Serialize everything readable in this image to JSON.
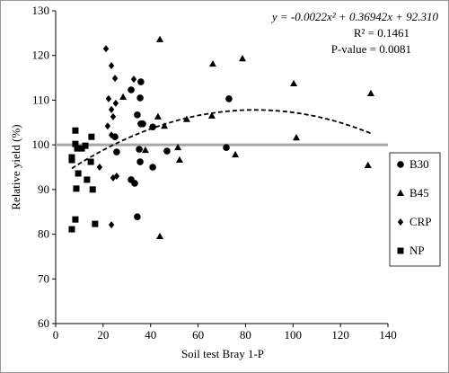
{
  "chart_data": {
    "type": "scatter",
    "xlabel": "Soil test Bray 1-P",
    "ylabel": "Relative yield (%)",
    "xlim": [
      0,
      140
    ],
    "xticks": [
      0,
      20,
      40,
      60,
      80,
      100,
      120,
      140
    ],
    "ylim": [
      60,
      130
    ],
    "yticks": [
      60,
      70,
      80,
      90,
      100,
      110,
      120,
      130
    ],
    "reference_line": {
      "y": 100,
      "color": "#a6a6a6"
    },
    "fit": {
      "a": -0.0022,
      "b": 0.36942,
      "c": 92.31,
      "color": "#000000"
    },
    "annotations": [
      "y = -0.0022x² + 0.36942x + 92.310",
      "R² = 0.1461",
      "P-value = 0.0081"
    ],
    "legend_position": "right",
    "series": [
      {
        "name": "B30",
        "marker": "circle",
        "color": "#000000",
        "x": [
          31.8,
          35.9,
          35.6,
          34.4,
          36.7,
          35.9,
          40.9,
          31.8,
          33.3,
          35.6,
          34.4,
          35.2,
          46.9,
          25.0,
          25.7,
          40.9,
          71.9,
          73.0
        ],
        "values": [
          112.3,
          114.1,
          110.5,
          106.7,
          104.7,
          104.7,
          104.0,
          92.2,
          91.4,
          96.2,
          83.9,
          99.0,
          98.6,
          101.8,
          98.4,
          95.0,
          99.4,
          110.3
        ]
      },
      {
        "name": "B45",
        "marker": "triangle",
        "color": "#000000",
        "x": [
          43.9,
          66.2,
          78.7,
          100.3,
          132.8,
          131.6,
          101.4,
          75.7,
          55.2,
          51.5,
          52.2,
          43.1,
          45.8,
          43.9,
          65.8,
          37.8,
          28.4
        ],
        "values": [
          123.6,
          118.1,
          119.3,
          113.7,
          111.5,
          95.4,
          101.6,
          97.8,
          105.7,
          99.4,
          96.6,
          106.3,
          104.2,
          79.5,
          106.5,
          98.8,
          110.7
        ]
      },
      {
        "name": "CRP",
        "marker": "diamond",
        "color": "#000000",
        "x": [
          21.2,
          23.5,
          25.0,
          22.3,
          23.5,
          24.2,
          25.3,
          21.9,
          23.5,
          18.5,
          24.2,
          23.5,
          25.7,
          32.9
        ],
        "values": [
          121.5,
          117.7,
          114.9,
          110.3,
          107.9,
          106.3,
          109.3,
          104.2,
          102.2,
          95.0,
          92.6,
          82.1,
          93.0,
          114.7
        ]
      },
      {
        "name": "NP",
        "marker": "square",
        "color": "#000000",
        "x": [
          8.3,
          8.3,
          9.1,
          11.0,
          12.5,
          6.8,
          6.8,
          9.5,
          13.2,
          14.8,
          15.6,
          15.1,
          8.7,
          8.3,
          16.6,
          6.8
        ],
        "values": [
          103.2,
          100.2,
          99.2,
          99.2,
          99.8,
          97.2,
          96.6,
          93.6,
          92.2,
          96.2,
          90.0,
          101.8,
          90.2,
          83.3,
          82.3,
          81.1
        ]
      }
    ]
  }
}
